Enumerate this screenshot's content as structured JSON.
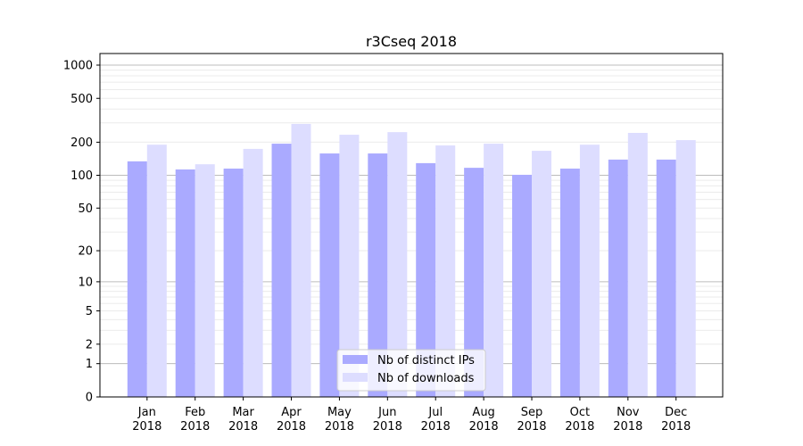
{
  "chart_data": {
    "type": "bar",
    "title": "r3Cseq 2018",
    "xlabel": "",
    "ylabel": "",
    "yscale": "log(1+y)",
    "ylim": [
      0,
      1273
    ],
    "yticks": [
      0,
      1,
      2,
      5,
      10,
      20,
      50,
      100,
      200,
      500,
      1000
    ],
    "grid": true,
    "legend_position": "bottom-center",
    "categories": [
      "Jan\n2018",
      "Feb\n2018",
      "Mar\n2018",
      "Apr\n2018",
      "May\n2018",
      "Jun\n2018",
      "Jul\n2018",
      "Aug\n2018",
      "Sep\n2018",
      "Oct\n2018",
      "Nov\n2018",
      "Dec\n2018"
    ],
    "series": [
      {
        "name": "Nb of distinct IPs",
        "color": "#aaaaff",
        "values": [
          134,
          113,
          115,
          194,
          158,
          158,
          129,
          117,
          101,
          115,
          139,
          139
        ]
      },
      {
        "name": "Nb of downloads",
        "color": "#ddddff",
        "values": [
          190,
          126,
          174,
          293,
          234,
          247,
          187,
          194,
          167,
          190,
          243,
          209
        ]
      }
    ]
  }
}
